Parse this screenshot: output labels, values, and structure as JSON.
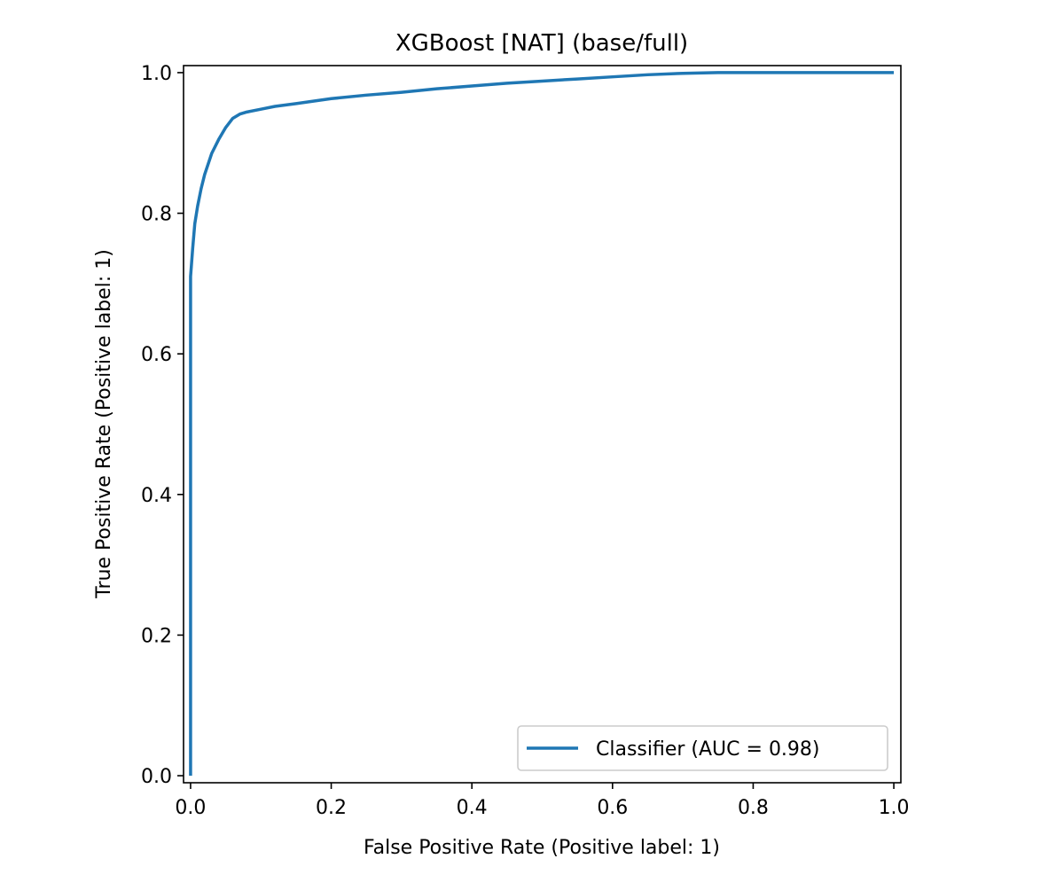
{
  "chart_data": {
    "type": "line",
    "title": "XGBoost [NAT] (base/full)",
    "xlabel": "False Positive Rate (Positive label: 1)",
    "ylabel": "True Positive Rate (Positive label: 1)",
    "xlim": [
      -0.01,
      1.01
    ],
    "ylim": [
      -0.01,
      1.01
    ],
    "xticks": [
      0.0,
      0.2,
      0.4,
      0.6,
      0.8,
      1.0
    ],
    "xtick_labels": [
      "0.0",
      "0.2",
      "0.4",
      "0.6",
      "0.8",
      "1.0"
    ],
    "yticks": [
      0.0,
      0.2,
      0.4,
      0.6,
      0.8,
      1.0
    ],
    "ytick_labels": [
      "0.0",
      "0.2",
      "0.4",
      "0.6",
      "0.8",
      "1.0"
    ],
    "grid": false,
    "legend_position": "lower-right",
    "series": [
      {
        "name": "Classifier (AUC = 0.98)",
        "color": "#1f77b4",
        "x": [
          0.0,
          0.0,
          0.0,
          0.003,
          0.006,
          0.01,
          0.015,
          0.02,
          0.025,
          0.03,
          0.04,
          0.05,
          0.06,
          0.07,
          0.08,
          0.1,
          0.12,
          0.15,
          0.2,
          0.25,
          0.3,
          0.35,
          0.4,
          0.45,
          0.5,
          0.55,
          0.6,
          0.65,
          0.7,
          0.75,
          0.8,
          0.85,
          0.9,
          0.95,
          1.0
        ],
        "y": [
          0.0,
          0.5,
          0.71,
          0.75,
          0.785,
          0.81,
          0.835,
          0.855,
          0.87,
          0.885,
          0.905,
          0.922,
          0.935,
          0.941,
          0.944,
          0.948,
          0.952,
          0.956,
          0.963,
          0.968,
          0.972,
          0.977,
          0.981,
          0.985,
          0.988,
          0.991,
          0.994,
          0.997,
          0.999,
          1.0,
          1.0,
          1.0,
          1.0,
          1.0,
          1.0
        ]
      }
    ]
  }
}
